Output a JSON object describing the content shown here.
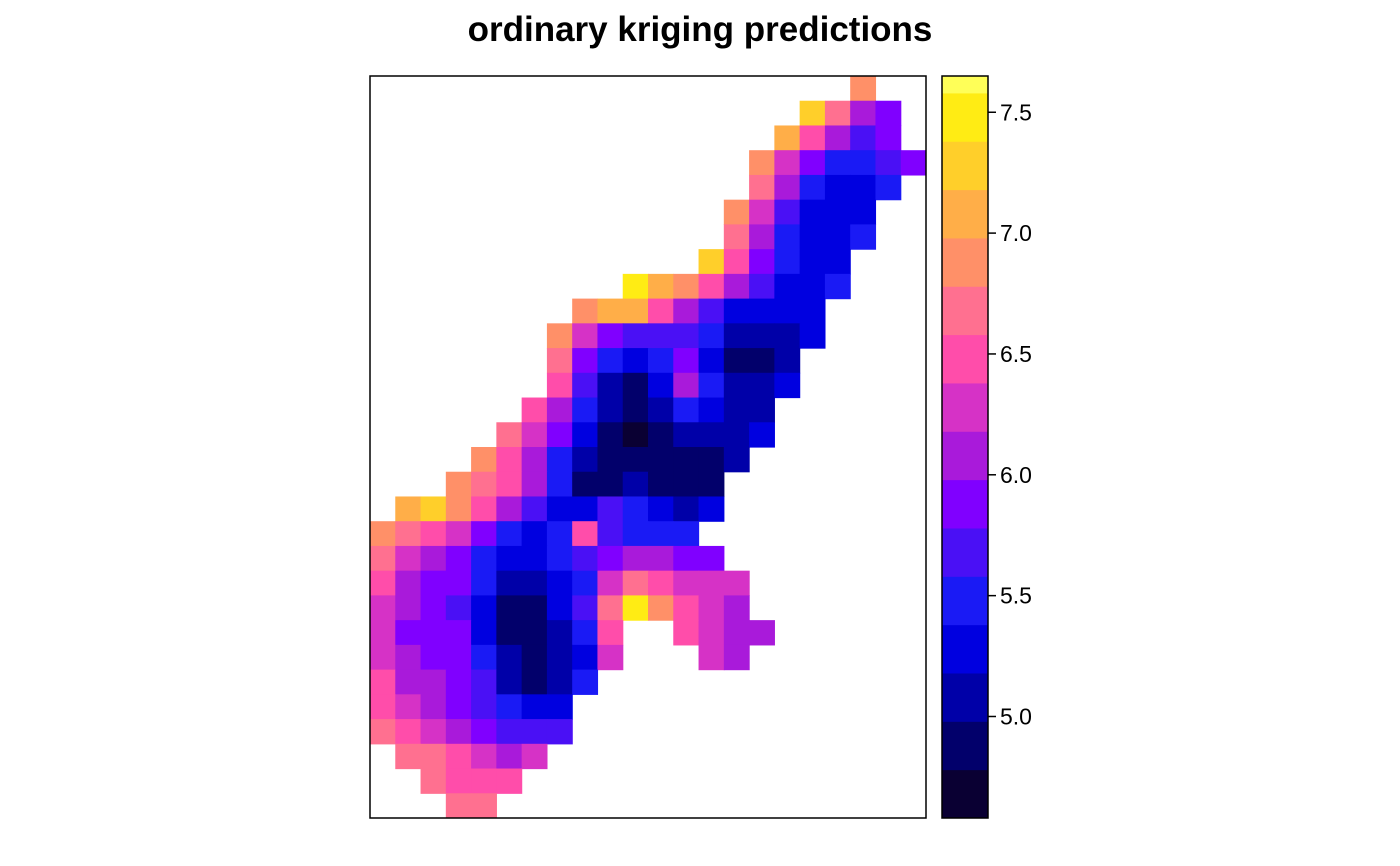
{
  "chart_data": {
    "type": "heatmap",
    "title": "ordinary kriging predictions",
    "xlabel": "",
    "ylabel": "",
    "colorbar": {
      "breaks": [
        4.58,
        4.78,
        4.98,
        5.18,
        5.38,
        5.58,
        5.78,
        5.98,
        6.18,
        6.38,
        6.58,
        6.78,
        6.98,
        7.18,
        7.38,
        7.58,
        7.65
      ],
      "colors": [
        "#0A0033",
        "#02006B",
        "#0000A8",
        "#0000E0",
        "#1A1AF5",
        "#4A10F5",
        "#8000FF",
        "#A91ADA",
        "#D632C6",
        "#FF4DAA",
        "#FF7090",
        "#FF9068",
        "#FFAE48",
        "#FFCF2A",
        "#FFEC14",
        "#FFFF58"
      ],
      "ticks": [
        5.0,
        5.5,
        6.0,
        6.5,
        7.0,
        7.5
      ],
      "tick_labels": [
        "5.0",
        "5.5",
        "6.0",
        "6.5",
        "7.0",
        "7.5"
      ],
      "range": [
        4.58,
        7.65
      ],
      "placement": "right"
    },
    "grid_values": {
      "cols": 22,
      "rows": 30,
      "note": "predicted log-zinc per grid cell; null = outside study area",
      "cells": [
        [
          null,
          null,
          null,
          null,
          null,
          null,
          null,
          null,
          null,
          null,
          null,
          null,
          null,
          null,
          null,
          null,
          null,
          null,
          null,
          6.8,
          null,
          null
        ],
        [
          null,
          null,
          null,
          null,
          null,
          null,
          null,
          null,
          null,
          null,
          null,
          null,
          null,
          null,
          null,
          null,
          null,
          7.2,
          6.6,
          6.0,
          5.9,
          null
        ],
        [
          null,
          null,
          null,
          null,
          null,
          null,
          null,
          null,
          null,
          null,
          null,
          null,
          null,
          null,
          null,
          null,
          7.0,
          6.4,
          6.0,
          5.7,
          5.8,
          null
        ],
        [
          null,
          null,
          null,
          null,
          null,
          null,
          null,
          null,
          null,
          null,
          null,
          null,
          null,
          null,
          null,
          6.9,
          6.3,
          5.8,
          5.5,
          5.5,
          5.7,
          5.8
        ],
        [
          null,
          null,
          null,
          null,
          null,
          null,
          null,
          null,
          null,
          null,
          null,
          null,
          null,
          null,
          null,
          6.6,
          6.0,
          5.5,
          5.3,
          5.3,
          5.5,
          null
        ],
        [
          null,
          null,
          null,
          null,
          null,
          null,
          null,
          null,
          null,
          null,
          null,
          null,
          null,
          null,
          6.8,
          6.2,
          5.7,
          5.3,
          5.2,
          5.3,
          null,
          null
        ],
        [
          null,
          null,
          null,
          null,
          null,
          null,
          null,
          null,
          null,
          null,
          null,
          null,
          null,
          null,
          6.7,
          6.0,
          5.5,
          5.2,
          5.2,
          5.4,
          null,
          null
        ],
        [
          null,
          null,
          null,
          null,
          null,
          null,
          null,
          null,
          null,
          null,
          null,
          null,
          null,
          7.2,
          6.4,
          5.8,
          5.4,
          5.2,
          5.3,
          null,
          null,
          null
        ],
        [
          null,
          null,
          null,
          null,
          null,
          null,
          null,
          null,
          null,
          null,
          7.4,
          7.0,
          6.8,
          6.5,
          6.0,
          5.6,
          5.3,
          5.2,
          5.4,
          null,
          null,
          null
        ],
        [
          null,
          null,
          null,
          null,
          null,
          null,
          null,
          null,
          6.9,
          7.1,
          7.0,
          6.5,
          6.0,
          5.7,
          5.3,
          5.2,
          5.2,
          5.3,
          null,
          null,
          null,
          null
        ],
        [
          null,
          null,
          null,
          null,
          null,
          null,
          null,
          6.8,
          6.2,
          5.9,
          5.7,
          5.6,
          5.7,
          5.4,
          5.1,
          5.0,
          5.1,
          5.3,
          null,
          null,
          null,
          null
        ],
        [
          null,
          null,
          null,
          null,
          null,
          null,
          null,
          6.6,
          5.8,
          5.4,
          5.2,
          5.4,
          5.9,
          5.3,
          4.9,
          4.9,
          5.1,
          null,
          null,
          null,
          null,
          null
        ],
        [
          null,
          null,
          null,
          null,
          null,
          null,
          null,
          6.4,
          5.6,
          5.0,
          4.9,
          5.3,
          6.0,
          5.5,
          5.0,
          5.0,
          5.2,
          null,
          null,
          null,
          null,
          null
        ],
        [
          null,
          null,
          null,
          null,
          null,
          null,
          6.5,
          6.0,
          5.5,
          5.0,
          4.8,
          5.0,
          5.5,
          5.3,
          5.0,
          5.1,
          null,
          null,
          null,
          null,
          null,
          null
        ],
        [
          null,
          null,
          null,
          null,
          null,
          6.7,
          6.3,
          5.9,
          5.3,
          4.9,
          4.7,
          4.8,
          5.0,
          5.0,
          5.0,
          5.2,
          null,
          null,
          null,
          null,
          null,
          null
        ],
        [
          null,
          null,
          null,
          null,
          6.8,
          6.5,
          6.1,
          5.5,
          5.0,
          4.8,
          4.8,
          4.8,
          4.8,
          4.9,
          5.1,
          null,
          null,
          null,
          null,
          null,
          null,
          null
        ],
        [
          null,
          null,
          null,
          6.9,
          6.7,
          6.4,
          6.0,
          5.4,
          4.9,
          4.9,
          5.0,
          4.9,
          4.8,
          4.9,
          null,
          null,
          null,
          null,
          null,
          null,
          null,
          null
        ],
        [
          null,
          7.1,
          7.3,
          6.9,
          6.5,
          6.0,
          5.6,
          5.3,
          5.3,
          5.6,
          5.4,
          5.2,
          5.1,
          5.3,
          null,
          null,
          null,
          null,
          null,
          null,
          null,
          null
        ],
        [
          6.9,
          6.6,
          6.4,
          6.2,
          5.8,
          5.4,
          5.3,
          5.5,
          6.4,
          5.6,
          5.4,
          5.4,
          5.5,
          null,
          null,
          null,
          null,
          null,
          null,
          null,
          null,
          null
        ],
        [
          6.6,
          6.3,
          6.1,
          5.9,
          5.5,
          5.2,
          5.2,
          5.4,
          5.7,
          5.8,
          6.1,
          6.0,
          5.9,
          5.9,
          null,
          null,
          null,
          null,
          null,
          null,
          null,
          null
        ],
        [
          6.4,
          6.1,
          5.9,
          5.8,
          5.4,
          5.0,
          5.1,
          5.3,
          5.5,
          6.3,
          6.7,
          6.5,
          6.3,
          6.2,
          6.2,
          null,
          null,
          null,
          null,
          null,
          null,
          null
        ],
        [
          6.3,
          6.0,
          5.8,
          5.7,
          5.3,
          4.9,
          4.9,
          5.2,
          5.6,
          6.6,
          7.4,
          6.9,
          6.4,
          6.2,
          6.1,
          null,
          null,
          null,
          null,
          null,
          null,
          null
        ],
        [
          6.2,
          5.9,
          5.8,
          5.8,
          5.3,
          4.8,
          4.8,
          5.0,
          5.4,
          6.5,
          null,
          null,
          6.5,
          6.2,
          6.0,
          6.0,
          null,
          null,
          null,
          null,
          null,
          null
        ],
        [
          6.3,
          6.0,
          5.9,
          5.9,
          5.4,
          5.0,
          4.8,
          5.0,
          5.3,
          6.3,
          null,
          null,
          null,
          6.3,
          6.1,
          null,
          null,
          null,
          null,
          null,
          null,
          null
        ],
        [
          6.4,
          6.1,
          6.0,
          5.9,
          5.6,
          5.1,
          4.9,
          5.0,
          5.5,
          null,
          null,
          null,
          null,
          null,
          null,
          null,
          null,
          null,
          null,
          null,
          null,
          null
        ],
        [
          6.5,
          6.3,
          6.1,
          5.9,
          5.7,
          5.4,
          5.2,
          5.3,
          null,
          null,
          null,
          null,
          null,
          null,
          null,
          null,
          null,
          null,
          null,
          null,
          null,
          null
        ],
        [
          6.6,
          6.5,
          6.3,
          6.1,
          5.9,
          5.7,
          5.6,
          5.6,
          null,
          null,
          null,
          null,
          null,
          null,
          null,
          null,
          null,
          null,
          null,
          null,
          null,
          null
        ],
        [
          null,
          6.7,
          6.6,
          6.5,
          6.3,
          6.1,
          6.2,
          null,
          null,
          null,
          null,
          null,
          null,
          null,
          null,
          null,
          null,
          null,
          null,
          null,
          null,
          null
        ],
        [
          null,
          null,
          6.6,
          6.5,
          6.5,
          6.4,
          null,
          null,
          null,
          null,
          null,
          null,
          null,
          null,
          null,
          null,
          null,
          null,
          null,
          null,
          null,
          null
        ],
        [
          null,
          null,
          null,
          6.6,
          6.6,
          null,
          null,
          null,
          null,
          null,
          null,
          null,
          null,
          null,
          null,
          null,
          null,
          null,
          null,
          null,
          null,
          null
        ]
      ]
    }
  }
}
